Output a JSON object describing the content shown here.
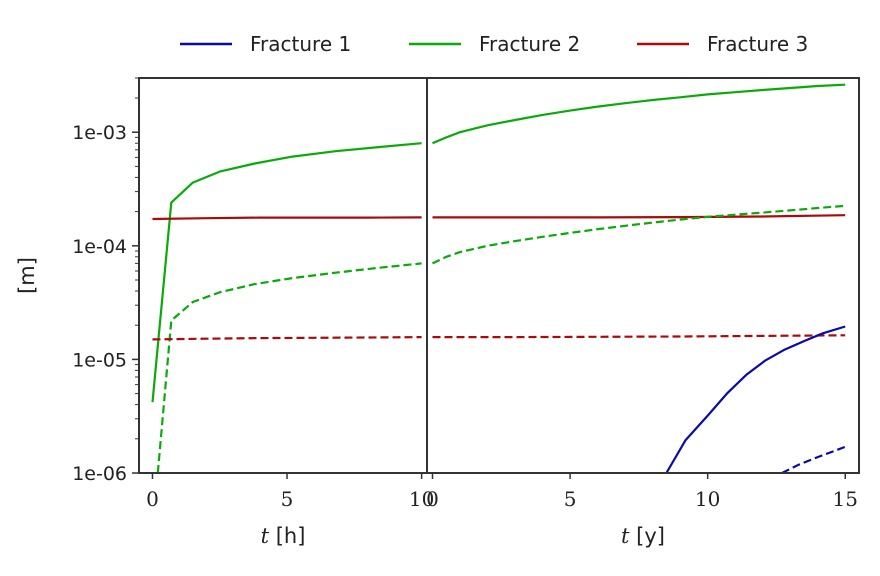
{
  "chart_data": {
    "type": "line",
    "ylabel": "[m]",
    "yscale": "log",
    "ylim": [
      1e-06,
      0.003
    ],
    "yticks": [
      {
        "value": 0.001,
        "label": "1e-03"
      },
      {
        "value": 0.0001,
        "label": "1e-04"
      },
      {
        "value": 1e-05,
        "label": "1e-05"
      },
      {
        "value": 1e-06,
        "label": "1e-06"
      }
    ],
    "legend": {
      "placement": "top-center",
      "entries": [
        {
          "name": "Fracture 1",
          "color": "#0a0aaa"
        },
        {
          "name": "Fracture 2",
          "color": "#0aaa0a"
        },
        {
          "name": "Fracture 3",
          "color": "#aa0a0a"
        }
      ]
    },
    "panels": [
      {
        "xlabel_var": "t",
        "xlabel_unit": "[h]",
        "xlim": [
          -0.5,
          10.2
        ],
        "xticks": [
          {
            "value": 0,
            "label": "0"
          },
          {
            "value": 5,
            "label": "5"
          },
          {
            "value": 10,
            "label": "10"
          }
        ],
        "series": [
          {
            "name": "Fracture 2",
            "style": "solid",
            "color": "#0aaa0a",
            "x": [
              0,
              0.7,
              1.5,
              2.5,
              3.8,
              5.2,
              6.8,
              8.4,
              10
            ],
            "y": [
              4.2e-06,
              0.00024,
              0.00036,
              0.00045,
              0.00053,
              0.00061,
              0.00068,
              0.00074,
              0.0008
            ]
          },
          {
            "name": "Fracture 3",
            "style": "solid",
            "color": "#aa0a0a",
            "x": [
              0,
              2,
              4,
              6,
              8,
              10
            ],
            "y": [
              0.000172,
              0.000175,
              0.000177,
              0.000177,
              0.000177,
              0.000178
            ]
          },
          {
            "name": "Fracture 2",
            "style": "dashed",
            "color": "#0aaa0a",
            "x": [
              0.2,
              0.7,
              1.5,
              2.5,
              3.8,
              5.2,
              6.8,
              8.4,
              10
            ],
            "y": [
              1e-06,
              2.2e-05,
              3.2e-05,
              3.9e-05,
              4.6e-05,
              5.2e-05,
              5.8e-05,
              6.4e-05,
              7e-05
            ]
          },
          {
            "name": "Fracture 3",
            "style": "dashed",
            "color": "#aa0a0a",
            "x": [
              0,
              2,
              4,
              6,
              8,
              10
            ],
            "y": [
              1.5e-05,
              1.52e-05,
              1.54e-05,
              1.55e-05,
              1.56e-05,
              1.57e-05
            ]
          }
        ]
      },
      {
        "xlabel_var": "t",
        "xlabel_unit": "[y]",
        "xlim": [
          -0.2,
          15.5
        ],
        "xticks": [
          {
            "value": 0,
            "label": "0"
          },
          {
            "value": 5,
            "label": "5"
          },
          {
            "value": 10,
            "label": "10"
          },
          {
            "value": 15,
            "label": "15"
          }
        ],
        "series": [
          {
            "name": "Fracture 2",
            "style": "solid",
            "color": "#0aaa0a",
            "x": [
              0,
              0.5,
              1,
              2,
              3,
              4,
              5,
              6,
              7,
              8,
              9,
              10,
              11,
              12,
              13,
              14,
              15
            ],
            "y": [
              0.0008,
              0.0009,
              0.001,
              0.00115,
              0.00128,
              0.00142,
              0.00155,
              0.00168,
              0.0018,
              0.00192,
              0.00203,
              0.00215,
              0.00225,
              0.00235,
              0.00245,
              0.00255,
              0.00262
            ]
          },
          {
            "name": "Fracture 3",
            "style": "solid",
            "color": "#aa0a0a",
            "x": [
              0,
              3,
              6,
              9,
              12,
              15
            ],
            "y": [
              0.000178,
              0.000178,
              0.000178,
              0.000179,
              0.000181,
              0.000186
            ]
          },
          {
            "name": "Fracture 2",
            "style": "dashed",
            "color": "#0aaa0a",
            "x": [
              0,
              0.5,
              1,
              2,
              3,
              4,
              5,
              6,
              7,
              8,
              9,
              10,
              11,
              12,
              13,
              14,
              15
            ],
            "y": [
              7e-05,
              8e-05,
              8.8e-05,
              0.0001,
              0.00011,
              0.00012,
              0.00013,
              0.00014,
              0.00015,
              0.00016,
              0.00017,
              0.00018,
              0.000188,
              0.000196,
              0.000205,
              0.000215,
              0.000225
            ]
          },
          {
            "name": "Fracture 3",
            "style": "dashed",
            "color": "#aa0a0a",
            "x": [
              0,
              3,
              6,
              9,
              12,
              15
            ],
            "y": [
              1.57e-05,
              1.57e-05,
              1.58e-05,
              1.59e-05,
              1.61e-05,
              1.63e-05
            ]
          },
          {
            "name": "Fracture 1",
            "style": "solid",
            "color": "#0a0aaa",
            "x": [
              8.5,
              9.2,
              10,
              10.7,
              11.4,
              12.1,
              12.8,
              13.5,
              14.2,
              15
            ],
            "y": [
              1e-06,
              1.95e-06,
              3.2e-06,
              5e-06,
              7.3e-06,
              9.8e-06,
              1.22e-05,
              1.45e-05,
              1.7e-05,
              1.95e-05
            ]
          },
          {
            "name": "Fracture 1",
            "style": "dashed",
            "color": "#0a0aaa",
            "x": [
              12.7,
              13.3,
              14,
              14.5,
              15
            ],
            "y": [
              1e-06,
              1.18e-06,
              1.38e-06,
              1.53e-06,
              1.7e-06
            ]
          }
        ]
      }
    ]
  }
}
